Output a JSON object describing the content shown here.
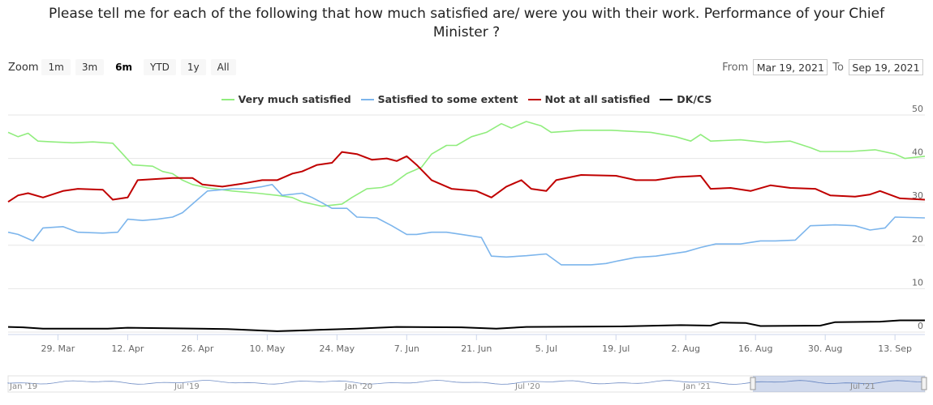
{
  "title": {
    "line1": "Please tell me for each of the following that how much satisfied are/ were you with their work. Performance of your Chief",
    "line2": "Minister ?"
  },
  "zoom": {
    "label": "Zoom",
    "buttons": [
      "1m",
      "3m",
      "6m",
      "YTD",
      "1y",
      "All"
    ],
    "active": "6m"
  },
  "range": {
    "from_label": "From",
    "from_value": "Mar 19, 2021",
    "to_label": "To",
    "to_value": "Sep 19, 2021"
  },
  "navigator": {
    "labels": [
      "Jan '19",
      "Jul '19",
      "Jan '20",
      "Jul '20",
      "Jan '21",
      "Jul '21"
    ]
  },
  "chart_data": {
    "type": "line",
    "title": "Please tell me for each of the following that how much satisfied are/ were you with their work. Performance of your Chief Minister ?",
    "xlabel": "",
    "ylabel": "",
    "xlim": [
      "2021-03-19",
      "2021-09-19"
    ],
    "ylim": [
      0,
      50
    ],
    "yticks": [
      0,
      10,
      20,
      30,
      40,
      50
    ],
    "xticks": [
      {
        "date": "2021-03-29",
        "label": "29. Mar"
      },
      {
        "date": "2021-04-12",
        "label": "12. Apr"
      },
      {
        "date": "2021-04-26",
        "label": "26. Apr"
      },
      {
        "date": "2021-05-10",
        "label": "10. May"
      },
      {
        "date": "2021-05-24",
        "label": "24. May"
      },
      {
        "date": "2021-06-07",
        "label": "7. Jun"
      },
      {
        "date": "2021-06-21",
        "label": "21. Jun"
      },
      {
        "date": "2021-07-05",
        "label": "5. Jul"
      },
      {
        "date": "2021-07-19",
        "label": "19. Jul"
      },
      {
        "date": "2021-08-02",
        "label": "2. Aug"
      },
      {
        "date": "2021-08-16",
        "label": "16. Aug"
      },
      {
        "date": "2021-08-30",
        "label": "30. Aug"
      },
      {
        "date": "2021-09-13",
        "label": "13. Sep"
      }
    ],
    "grid": true,
    "legend_position": "top-center",
    "series": [
      {
        "name": "Very much satisfied",
        "color": "#90ed7d",
        "points": [
          [
            "2021-03-19",
            46
          ],
          [
            "2021-03-21",
            45
          ],
          [
            "2021-03-23",
            45.8
          ],
          [
            "2021-03-25",
            44
          ],
          [
            "2021-03-28",
            43.8
          ],
          [
            "2021-04-01",
            43.6
          ],
          [
            "2021-04-05",
            43.8
          ],
          [
            "2021-04-09",
            43.5
          ],
          [
            "2021-04-11",
            41
          ],
          [
            "2021-04-13",
            38.5
          ],
          [
            "2021-04-17",
            38.2
          ],
          [
            "2021-04-19",
            37
          ],
          [
            "2021-04-21",
            36.5
          ],
          [
            "2021-04-23",
            35
          ],
          [
            "2021-04-25",
            34
          ],
          [
            "2021-04-28",
            33.2
          ],
          [
            "2021-05-03",
            32.5
          ],
          [
            "2021-05-08",
            32
          ],
          [
            "2021-05-12",
            31.5
          ],
          [
            "2021-05-15",
            31
          ],
          [
            "2021-05-17",
            30
          ],
          [
            "2021-05-19",
            29.5
          ],
          [
            "2021-05-21",
            29
          ],
          [
            "2021-05-25",
            29.5
          ],
          [
            "2021-05-27",
            31
          ],
          [
            "2021-05-30",
            33
          ],
          [
            "2021-06-02",
            33.3
          ],
          [
            "2021-06-04",
            34
          ],
          [
            "2021-06-07",
            36.5
          ],
          [
            "2021-06-10",
            38
          ],
          [
            "2021-06-12",
            41
          ],
          [
            "2021-06-15",
            43
          ],
          [
            "2021-06-17",
            43
          ],
          [
            "2021-06-20",
            45
          ],
          [
            "2021-06-23",
            46
          ],
          [
            "2021-06-26",
            48
          ],
          [
            "2021-06-28",
            47
          ],
          [
            "2021-07-01",
            48.5
          ],
          [
            "2021-07-04",
            47.5
          ],
          [
            "2021-07-06",
            46
          ],
          [
            "2021-07-12",
            46.5
          ],
          [
            "2021-07-18",
            46.5
          ],
          [
            "2021-07-26",
            46
          ],
          [
            "2021-07-31",
            45
          ],
          [
            "2021-08-03",
            44
          ],
          [
            "2021-08-05",
            45.5
          ],
          [
            "2021-08-07",
            44
          ],
          [
            "2021-08-13",
            44.3
          ],
          [
            "2021-08-18",
            43.7
          ],
          [
            "2021-08-23",
            44
          ],
          [
            "2021-08-27",
            42.5
          ],
          [
            "2021-08-29",
            41.6
          ],
          [
            "2021-09-04",
            41.6
          ],
          [
            "2021-09-09",
            42
          ],
          [
            "2021-09-13",
            41
          ],
          [
            "2021-09-15",
            40
          ],
          [
            "2021-09-19",
            40.5
          ]
        ]
      },
      {
        "name": "Satisfied to some extent",
        "color": "#7cb5ec",
        "points": [
          [
            "2021-03-19",
            23
          ],
          [
            "2021-03-21",
            22.5
          ],
          [
            "2021-03-24",
            21
          ],
          [
            "2021-03-26",
            24
          ],
          [
            "2021-03-30",
            24.3
          ],
          [
            "2021-04-02",
            23
          ],
          [
            "2021-04-07",
            22.8
          ],
          [
            "2021-04-10",
            23
          ],
          [
            "2021-04-12",
            26
          ],
          [
            "2021-04-15",
            25.7
          ],
          [
            "2021-04-18",
            26
          ],
          [
            "2021-04-21",
            26.5
          ],
          [
            "2021-04-23",
            27.5
          ],
          [
            "2021-04-25",
            29.5
          ],
          [
            "2021-04-28",
            32.5
          ],
          [
            "2021-05-03",
            33
          ],
          [
            "2021-05-06",
            33
          ],
          [
            "2021-05-09",
            33.5
          ],
          [
            "2021-05-11",
            34
          ],
          [
            "2021-05-13",
            31.5
          ],
          [
            "2021-05-17",
            32
          ],
          [
            "2021-05-19",
            31
          ],
          [
            "2021-05-21",
            29.8
          ],
          [
            "2021-05-23",
            28.5
          ],
          [
            "2021-05-26",
            28.5
          ],
          [
            "2021-05-28",
            26.5
          ],
          [
            "2021-06-01",
            26.3
          ],
          [
            "2021-06-04",
            24.5
          ],
          [
            "2021-06-07",
            22.5
          ],
          [
            "2021-06-09",
            22.5
          ],
          [
            "2021-06-12",
            23
          ],
          [
            "2021-06-15",
            23
          ],
          [
            "2021-06-18",
            22.5
          ],
          [
            "2021-06-22",
            21.8
          ],
          [
            "2021-06-24",
            17.5
          ],
          [
            "2021-06-27",
            17.3
          ],
          [
            "2021-07-01",
            17.6
          ],
          [
            "2021-07-05",
            18
          ],
          [
            "2021-07-08",
            15.5
          ],
          [
            "2021-07-14",
            15.5
          ],
          [
            "2021-07-17",
            15.8
          ],
          [
            "2021-07-19",
            16.3
          ],
          [
            "2021-07-23",
            17.2
          ],
          [
            "2021-07-27",
            17.5
          ],
          [
            "2021-08-02",
            18.5
          ],
          [
            "2021-08-05",
            19.5
          ],
          [
            "2021-08-08",
            20.3
          ],
          [
            "2021-08-13",
            20.3
          ],
          [
            "2021-08-17",
            21
          ],
          [
            "2021-08-20",
            21
          ],
          [
            "2021-08-24",
            21.2
          ],
          [
            "2021-08-27",
            24.5
          ],
          [
            "2021-09-01",
            24.7
          ],
          [
            "2021-09-05",
            24.5
          ],
          [
            "2021-09-08",
            23.5
          ],
          [
            "2021-09-11",
            24
          ],
          [
            "2021-09-13",
            26.5
          ],
          [
            "2021-09-19",
            26.3
          ]
        ]
      },
      {
        "name": "Not at all satisfied",
        "color": "#c00000",
        "points": [
          [
            "2021-03-19",
            30
          ],
          [
            "2021-03-21",
            31.5
          ],
          [
            "2021-03-23",
            32
          ],
          [
            "2021-03-26",
            31
          ],
          [
            "2021-03-30",
            32.5
          ],
          [
            "2021-04-02",
            33
          ],
          [
            "2021-04-07",
            32.8
          ],
          [
            "2021-04-09",
            30.5
          ],
          [
            "2021-04-12",
            31
          ],
          [
            "2021-04-14",
            35
          ],
          [
            "2021-04-17",
            35.2
          ],
          [
            "2021-04-21",
            35.5
          ],
          [
            "2021-04-25",
            35.5
          ],
          [
            "2021-04-27",
            34
          ],
          [
            "2021-05-01",
            33.5
          ],
          [
            "2021-05-05",
            34.2
          ],
          [
            "2021-05-09",
            35
          ],
          [
            "2021-05-12",
            35
          ],
          [
            "2021-05-15",
            36.5
          ],
          [
            "2021-05-17",
            37
          ],
          [
            "2021-05-20",
            38.5
          ],
          [
            "2021-05-23",
            39
          ],
          [
            "2021-05-25",
            41.5
          ],
          [
            "2021-05-28",
            41
          ],
          [
            "2021-05-31",
            39.7
          ],
          [
            "2021-06-03",
            40
          ],
          [
            "2021-06-05",
            39.4
          ],
          [
            "2021-06-07",
            40.5
          ],
          [
            "2021-06-09",
            38.5
          ],
          [
            "2021-06-12",
            35
          ],
          [
            "2021-06-16",
            33
          ],
          [
            "2021-06-21",
            32.5
          ],
          [
            "2021-06-24",
            31
          ],
          [
            "2021-06-27",
            33.5
          ],
          [
            "2021-06-30",
            35
          ],
          [
            "2021-07-02",
            33
          ],
          [
            "2021-07-05",
            32.5
          ],
          [
            "2021-07-07",
            35
          ],
          [
            "2021-07-12",
            36.2
          ],
          [
            "2021-07-19",
            36
          ],
          [
            "2021-07-23",
            35
          ],
          [
            "2021-07-27",
            35
          ],
          [
            "2021-07-31",
            35.7
          ],
          [
            "2021-08-05",
            36
          ],
          [
            "2021-08-07",
            33
          ],
          [
            "2021-08-11",
            33.2
          ],
          [
            "2021-08-15",
            32.5
          ],
          [
            "2021-08-19",
            33.8
          ],
          [
            "2021-08-23",
            33.2
          ],
          [
            "2021-08-28",
            33
          ],
          [
            "2021-08-31",
            31.5
          ],
          [
            "2021-09-05",
            31.2
          ],
          [
            "2021-09-08",
            31.7
          ],
          [
            "2021-09-10",
            32.5
          ],
          [
            "2021-09-14",
            30.8
          ],
          [
            "2021-09-19",
            30.5
          ]
        ]
      },
      {
        "name": "DK/CS",
        "color": "#000000",
        "points": [
          [
            "2021-03-19",
            1.2
          ],
          [
            "2021-03-22",
            1.1
          ],
          [
            "2021-03-26",
            0.8
          ],
          [
            "2021-04-08",
            0.8
          ],
          [
            "2021-04-12",
            1
          ],
          [
            "2021-04-20",
            0.9
          ],
          [
            "2021-05-02",
            0.7
          ],
          [
            "2021-05-12",
            0.2
          ],
          [
            "2021-05-20",
            0.5
          ],
          [
            "2021-05-28",
            0.8
          ],
          [
            "2021-06-05",
            1.2
          ],
          [
            "2021-06-18",
            1.1
          ],
          [
            "2021-06-25",
            0.8
          ],
          [
            "2021-07-01",
            1.2
          ],
          [
            "2021-07-20",
            1.3
          ],
          [
            "2021-08-01",
            1.6
          ],
          [
            "2021-08-07",
            1.5
          ],
          [
            "2021-08-09",
            2.2
          ],
          [
            "2021-08-14",
            2.1
          ],
          [
            "2021-08-17",
            1.4
          ],
          [
            "2021-08-29",
            1.5
          ],
          [
            "2021-09-01",
            2.3
          ],
          [
            "2021-09-10",
            2.4
          ],
          [
            "2021-09-14",
            2.7
          ],
          [
            "2021-09-19",
            2.7
          ]
        ]
      }
    ]
  }
}
